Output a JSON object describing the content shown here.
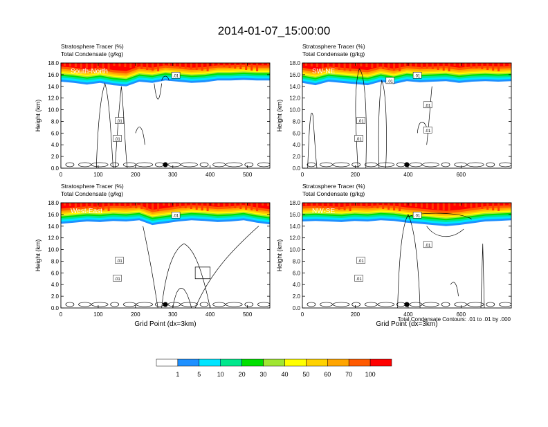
{
  "title": "2014-01-07_15:00:00",
  "colors": {
    "levels": [
      "#ffffff",
      "#1e90ff",
      "#00e5ff",
      "#00e88c",
      "#00e000",
      "#a0e632",
      "#ffff00",
      "#ffd200",
      "#ffa500",
      "#ff5a00",
      "#ff0000"
    ],
    "contour": "#000000",
    "marker": "#000000"
  },
  "colorbar": {
    "labels": [
      "1",
      "5",
      "10",
      "20",
      "30",
      "40",
      "50",
      "60",
      "70",
      "100"
    ]
  },
  "chart_data": [
    {
      "type": "heatmap",
      "subtitle1": "Stratosphere Tracer   (%)",
      "subtitle2": "Total Condensate   (g/kg)",
      "panel_label": "South-North",
      "ylabel": "Height (km)",
      "xlabel": "",
      "xlim": [
        0,
        560
      ],
      "ylim": [
        0,
        18
      ],
      "xticks": [
        0,
        100,
        200,
        300,
        400,
        500
      ],
      "xticklabels": [
        "0",
        "100",
        "200",
        "300",
        "400",
        "500"
      ],
      "yticks": [
        0,
        2,
        4,
        6,
        8,
        10,
        12,
        14,
        16,
        18
      ],
      "yticklabels": [
        "0.0",
        "2.0",
        "4.0",
        "6.0",
        "8.0",
        "10.0",
        "12.0",
        "14.0",
        "16.0",
        "18.0"
      ],
      "marker_x": 280,
      "contour_labels": [
        ".01",
        ".01",
        ".01"
      ],
      "tracer_base_km": [
        14.8,
        14.6,
        14.3,
        14.6,
        14.2,
        14.0,
        14.8,
        14.6,
        15.0,
        14.8,
        14.6,
        14.7,
        15.0,
        15.0,
        15.1,
        15.0,
        15.0
      ]
    },
    {
      "type": "heatmap",
      "subtitle1": "Stratosphere Tracer   (%)",
      "subtitle2": "Total Condensate   (g/kg)",
      "panel_label": "SW-NE",
      "ylabel": "Height (km)",
      "xlabel": "",
      "xlim": [
        0,
        790
      ],
      "ylim": [
        0,
        18
      ],
      "xticks": [
        0,
        200,
        400,
        600
      ],
      "xticklabels": [
        "0",
        "200",
        "400",
        "600"
      ],
      "yticks": [
        0,
        2,
        4,
        6,
        8,
        10,
        12,
        14,
        16,
        18
      ],
      "yticklabels": [
        "0.0",
        "2.0",
        "4.0",
        "6.0",
        "8.0",
        "10.0",
        "12.0",
        "14.0",
        "16.0",
        "18.0"
      ],
      "marker_x": 395,
      "contour_labels": [
        ".01",
        ".01",
        ".01",
        ".01",
        ".01",
        ".01"
      ],
      "tracer_base_km": [
        14.6,
        14.2,
        14.8,
        14.6,
        14.4,
        14.2,
        14.8,
        14.4,
        14.9,
        14.7,
        14.8,
        14.9,
        14.6,
        14.8,
        14.9,
        14.8,
        14.9
      ]
    },
    {
      "type": "heatmap",
      "subtitle1": "Stratosphere Tracer   (%)",
      "subtitle2": "Total Condensate   (g/kg)",
      "panel_label": "West-East",
      "ylabel": "Height (km)",
      "xlabel": "Grid Point (dx=3km)",
      "xlim": [
        0,
        560
      ],
      "ylim": [
        0,
        18
      ],
      "xticks": [
        0,
        100,
        200,
        300,
        400,
        500
      ],
      "xticklabels": [
        "0",
        "100",
        "200",
        "300",
        "400",
        "500"
      ],
      "yticks": [
        0,
        2,
        4,
        6,
        8,
        10,
        12,
        14,
        16,
        18
      ],
      "yticklabels": [
        "0.0",
        "2.0",
        "4.0",
        "6.0",
        "8.0",
        "10.0",
        "12.0",
        "14.0",
        "16.0",
        "18.0"
      ],
      "marker_x": 280,
      "contour_labels": [
        ".01",
        ".01",
        ".01"
      ],
      "tracer_base_km": [
        14.4,
        14.6,
        14.8,
        14.7,
        14.9,
        14.8,
        15.0,
        14.2,
        14.5,
        14.8,
        15.0,
        14.9,
        14.7,
        14.8,
        15.0,
        14.6,
        14.3
      ]
    },
    {
      "type": "heatmap",
      "subtitle1": "Stratosphere Tracer   (%)",
      "subtitle2": "Total Condensate   (g/kg)",
      "panel_label": "NW-SE",
      "ylabel": "Height (km)",
      "xlabel": "Grid Point (dx=3km)",
      "xlim": [
        0,
        790
      ],
      "ylim": [
        0,
        18
      ],
      "xticks": [
        0,
        200,
        400,
        600
      ],
      "xticklabels": [
        "0",
        "200",
        "400",
        "600"
      ],
      "yticks": [
        0,
        2,
        4,
        6,
        8,
        10,
        12,
        14,
        16,
        18
      ],
      "yticklabels": [
        "0.0",
        "2.0",
        "4.0",
        "6.0",
        "8.0",
        "10.0",
        "12.0",
        "14.0",
        "16.0",
        "18.0"
      ],
      "marker_x": 395,
      "contour_labels": [
        ".01",
        ".01",
        ".01",
        ".01"
      ],
      "tracer_base_km": [
        14.8,
        14.9,
        14.8,
        14.7,
        14.9,
        14.8,
        15.0,
        14.9,
        14.6,
        14.4,
        14.2,
        14.0,
        14.2,
        14.5,
        14.8,
        14.9,
        15.0
      ]
    }
  ],
  "contour_info": "Total Condensate Contours: .01 to .01 by .000"
}
